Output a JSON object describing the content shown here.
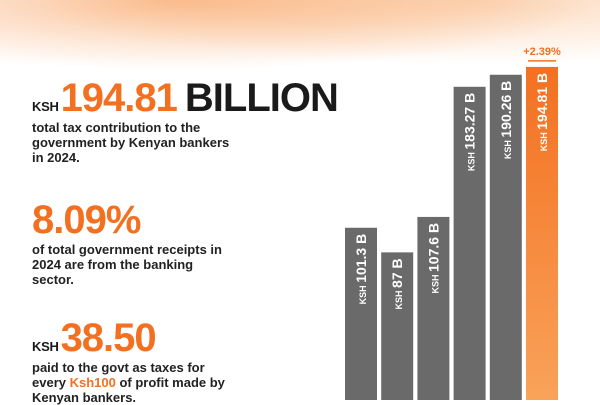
{
  "stats": {
    "tax_total": {
      "prefix": "KSH",
      "value": "194.81",
      "unit": "BILLION",
      "description": "total tax contribution to the government by Kenyan bankers in 2024."
    },
    "receipts_share": {
      "value": "8.09%",
      "description": "of total government receipts in 2024 are from the banking sector."
    },
    "per_100": {
      "prefix": "KSH",
      "value": "38.50",
      "desc_before": "paid to the govt as taxes for every ",
      "desc_highlight": "Ksh100",
      "desc_after": " of profit made by Kenyan bankers."
    }
  },
  "colors": {
    "accent": "#f37021",
    "bar_gray": "#6a6a6a",
    "text": "#1a1a1a"
  },
  "chart_data": {
    "type": "bar",
    "orientation": "vertical",
    "categories": [
      "",
      "",
      "",
      "",
      "",
      ""
    ],
    "values": [
      101.3,
      87,
      107.6,
      183.27,
      190.26,
      194.81
    ],
    "labels": [
      "KSH 101.3 B",
      "KSH 87 B",
      "KSH 107.6 B",
      "KSH 183.27 B",
      "KSH 190.26 B",
      "KSH 194.81 B"
    ],
    "highlight_index": 5,
    "annotation": "+2.39%",
    "ylim": [
      0,
      200
    ]
  }
}
